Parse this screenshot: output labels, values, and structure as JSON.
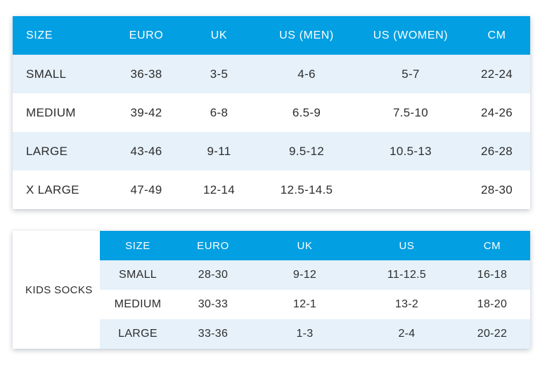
{
  "colors": {
    "header_bg": "#029fe2",
    "header_text": "#ffffff",
    "row_alt_bg": "#e6f1fa",
    "row_bg": "#ffffff",
    "body_text": "#2d2d2d"
  },
  "adult_table": {
    "columns": [
      "SIZE",
      "EURO",
      "UK",
      "US (MEN)",
      "US (WOMEN)",
      "CM"
    ],
    "rows": [
      [
        "SMALL",
        "36-38",
        "3-5",
        "4-6",
        "5-7",
        "22-24"
      ],
      [
        "MEDIUM",
        "39-42",
        "6-8",
        "6.5-9",
        "7.5-10",
        "24-26"
      ],
      [
        "LARGE",
        "43-46",
        "9-11",
        "9.5-12",
        "10.5-13",
        "26-28"
      ],
      [
        "X LARGE",
        "47-49",
        "12-14",
        "12.5-14.5",
        "",
        "28-30"
      ]
    ]
  },
  "kids_table": {
    "label": "KIDS SOCKS",
    "columns": [
      "SIZE",
      "EURO",
      "UK",
      "US",
      "CM"
    ],
    "rows": [
      [
        "SMALL",
        "28-30",
        "9-12",
        "11-12.5",
        "16-18"
      ],
      [
        "MEDIUM",
        "30-33",
        "12-1",
        "13-2",
        "18-20"
      ],
      [
        "LARGE",
        "33-36",
        "1-3",
        "2-4",
        "20-22"
      ]
    ]
  }
}
